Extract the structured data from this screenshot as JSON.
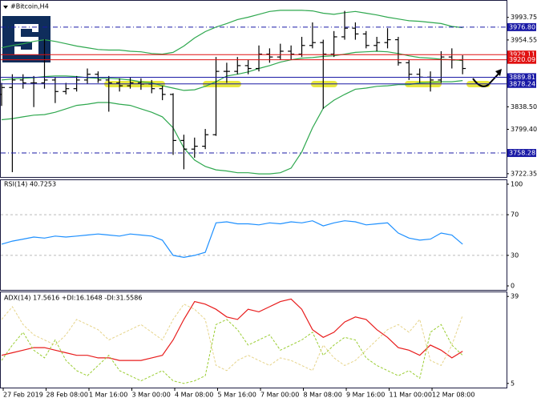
{
  "chart_data": [
    {
      "type": "ohlc",
      "title": "#Bitcoin,H4",
      "color": "#000000",
      "xlim": [
        -0.15,
        46.95
      ],
      "ylim": [
        3718,
        4017
      ],
      "yticks": [
        3993.75,
        3954.55,
        {
          "value": 3838.5,
          "label": "3838.50"
        },
        {
          "value": 3799.4,
          "label": "3799.40"
        },
        3722.35
      ],
      "open": [
        3860,
        3872,
        3885,
        3880,
        3880,
        3885,
        3865,
        3870,
        3885,
        3895,
        3885,
        3880,
        3875,
        3880,
        3878,
        3870,
        3860,
        3780,
        3765,
        3770,
        3790,
        3900,
        3900,
        3910,
        3905,
        3930,
        3925,
        3935,
        3930,
        3945,
        3950,
        3930,
        3960,
        3975,
        3965,
        3945,
        3950,
        3955,
        3915,
        3895,
        3890,
        3885,
        3925,
        3920
      ],
      "high": [
        3880,
        3895,
        3895,
        3892,
        3956,
        3890,
        3880,
        3892,
        3905,
        3900,
        3892,
        3888,
        3890,
        3888,
        3885,
        3875,
        3862,
        3790,
        3785,
        3800,
        3925,
        3915,
        3925,
        3920,
        3945,
        3940,
        3948,
        3945,
        3960,
        3985,
        3955,
        3970,
        4005,
        3985,
        3970,
        3960,
        3975,
        3960,
        3920,
        3905,
        3900,
        3935,
        3940,
        3928
      ],
      "low": [
        3840,
        3725,
        3870,
        3838,
        3870,
        3845,
        3860,
        3865,
        3878,
        3880,
        3830,
        3865,
        3870,
        3868,
        3862,
        3850,
        3755,
        3730,
        3750,
        3765,
        3788,
        3880,
        3895,
        3895,
        3900,
        3915,
        3920,
        3920,
        3925,
        3940,
        3835,
        3925,
        3955,
        3955,
        3940,
        3935,
        3940,
        3910,
        3885,
        3880,
        3865,
        3880,
        3905,
        3895
      ],
      "close": [
        3872,
        3885,
        3880,
        3880,
        3885,
        3865,
        3870,
        3885,
        3895,
        3885,
        3880,
        3875,
        3880,
        3878,
        3870,
        3860,
        3780,
        3765,
        3770,
        3790,
        3900,
        3900,
        3910,
        3905,
        3930,
        3925,
        3935,
        3930,
        3945,
        3950,
        3930,
        3960,
        3975,
        3965,
        3945,
        3950,
        3955,
        3915,
        3895,
        3890,
        3885,
        3925,
        3920,
        3905
      ],
      "series": [
        {
          "color": "#2fa84f",
          "values": [
            3941,
            3945,
            3948,
            3952,
            3955,
            3952,
            3948,
            3944,
            3941,
            3938,
            3937,
            3937,
            3935,
            3934,
            3931,
            3930,
            3933,
            3944,
            3958,
            3969,
            3977,
            3983,
            3990,
            3994,
            3999,
            4004,
            4006,
            4006,
            4006,
            4005,
            4001,
            3999,
            4002,
            4004,
            4001,
            3998,
            3994,
            3991,
            3988,
            3987,
            3985,
            3983,
            3978,
            3976
          ]
        },
        {
          "color": "#2fa84f",
          "values": [
            3885,
            3887,
            3888,
            3889,
            3891,
            3892,
            3892,
            3891,
            3889,
            3888,
            3888,
            3887,
            3885,
            3882,
            3880,
            3875,
            3871,
            3867,
            3868,
            3874,
            3882,
            3892,
            3895,
            3899,
            3905,
            3910,
            3916,
            3920,
            3923,
            3924,
            3926,
            3927,
            3930,
            3933,
            3934,
            3935,
            3934,
            3931,
            3927,
            3924,
            3923,
            3921,
            3920,
            3919
          ]
        },
        {
          "color": "#2fa84f",
          "values": [
            3816,
            3818,
            3821,
            3824,
            3825,
            3829,
            3835,
            3841,
            3843,
            3846,
            3846,
            3843,
            3841,
            3835,
            3829,
            3821,
            3802,
            3767,
            3746,
            3735,
            3729,
            3727,
            3724,
            3724,
            3722,
            3722,
            3724,
            3732,
            3760,
            3802,
            3836,
            3850,
            3860,
            3869,
            3871,
            3874,
            3875,
            3877,
            3877,
            3880,
            3881,
            3882,
            3882,
            3884
          ]
        }
      ],
      "levels": [
        {
          "value": 3976.8,
          "label": "3976.80",
          "color": "#1a1aa6",
          "style": "dashdot"
        },
        {
          "value": 3929.11,
          "label": "3929.11",
          "color": "#e01010",
          "style": "solid"
        },
        {
          "value": 3920.09,
          "label": "3920.09",
          "color": "#e01010",
          "style": "solid"
        },
        {
          "value": 3889.81,
          "label": "3889.81",
          "color": "#1a1aa6",
          "style": "solid"
        },
        {
          "value": 3878.24,
          "label": "3878.24",
          "color": "#1a1aa6",
          "style": "solid"
        },
        {
          "value": 3758.28,
          "label": "3758.28",
          "color": "#1a1aa6",
          "style": "dashdot"
        }
      ]
    },
    {
      "type": "line",
      "title": "RSI(14) 40.7253",
      "xlim": [
        -0.15,
        46.95
      ],
      "ylim": [
        0,
        100
      ],
      "yticks": [
        100,
        70,
        30,
        0
      ],
      "grid_levels": [
        70,
        30
      ],
      "series": [
        {
          "color": "#1e90ff",
          "dash": false,
          "values": [
            41,
            44,
            46,
            48,
            47,
            49,
            48,
            49,
            50,
            51,
            50,
            49,
            51,
            50,
            49,
            45,
            30,
            28,
            30,
            33,
            62,
            63,
            61,
            61,
            60,
            62,
            61,
            63,
            62,
            64,
            59,
            62,
            64,
            63,
            60,
            61,
            62,
            52,
            47,
            45,
            46,
            52,
            50,
            41
          ]
        }
      ]
    },
    {
      "type": "line",
      "title": "ADX(14) 17.5616 +DI:16.1648 -DI:31.5586",
      "xlim": [
        -0.15,
        46.95
      ],
      "ylim": [
        4,
        40
      ],
      "yticks": [
        39,
        5
      ],
      "xticks": [
        {
          "value": 0,
          "label": "27 Feb 2019"
        },
        {
          "value": 4,
          "label": "28 Feb 08:00"
        },
        {
          "value": 8,
          "label": "1 Mar 16:00"
        },
        {
          "value": 12,
          "label": "3 Mar 00:00"
        },
        {
          "value": 16,
          "label": "4 Mar 08:00"
        },
        {
          "value": 20,
          "label": "5 Mar 16:00"
        },
        {
          "value": 24,
          "label": "7 Mar 00:00"
        },
        {
          "value": 28,
          "label": "8 Mar 08:00"
        },
        {
          "value": 32,
          "label": "9 Mar 16:00"
        },
        {
          "value": 36,
          "label": "11 Mar 00:00"
        },
        {
          "value": 40,
          "label": "12 Mar 08:00"
        }
      ],
      "series": [
        {
          "color": "#e81c1c",
          "dash": false,
          "values": [
            16,
            17,
            18,
            19,
            19,
            18,
            17,
            16,
            16,
            15,
            15,
            14,
            14,
            14,
            15,
            16,
            22,
            30,
            37,
            36,
            34,
            31,
            30,
            34,
            33,
            35,
            37,
            38,
            34,
            26,
            23,
            25,
            29,
            31,
            30,
            26,
            23,
            19,
            18,
            16,
            20,
            18,
            15,
            17.6
          ]
        },
        {
          "color": "#9acd32",
          "dash": true,
          "values": [
            14,
            20,
            25,
            18,
            15,
            22,
            14,
            10,
            8,
            12,
            16,
            10,
            8,
            6,
            8,
            10,
            6,
            5,
            6,
            8,
            28,
            30,
            26,
            20,
            22,
            24,
            18,
            20,
            22,
            25,
            16,
            20,
            23,
            22,
            15,
            12,
            10,
            8,
            10,
            7,
            25,
            28,
            20,
            16
          ]
        },
        {
          "color": "#e6d48a",
          "dash": true,
          "values": [
            30,
            35,
            28,
            24,
            22,
            20,
            24,
            30,
            28,
            26,
            22,
            24,
            26,
            28,
            25,
            22,
            30,
            36,
            34,
            30,
            12,
            10,
            14,
            16,
            14,
            12,
            15,
            14,
            12,
            10,
            20,
            15,
            12,
            14,
            18,
            22,
            26,
            28,
            25,
            30,
            14,
            12,
            20,
            31.6
          ]
        }
      ]
    }
  ]
}
